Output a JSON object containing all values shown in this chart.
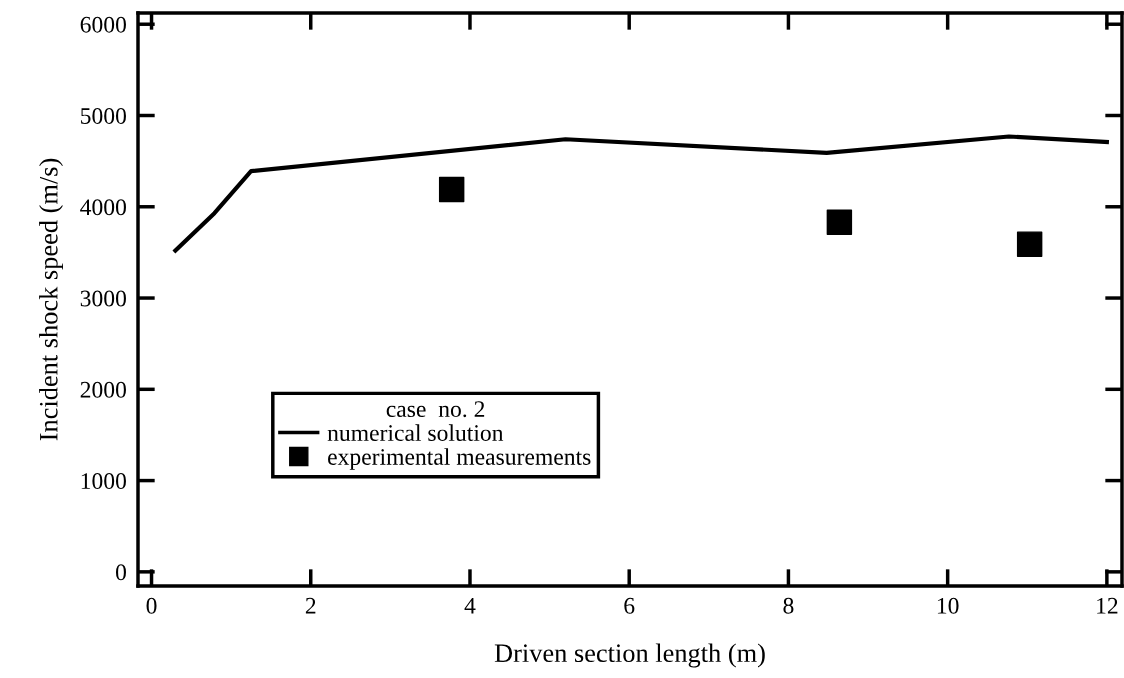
{
  "chart_data": {
    "type": "line",
    "xlabel": "Driven section length (m)",
    "ylabel": "Incident shock speed (m/s)",
    "legend_title": "case  no. 2",
    "xlim": [
      -0.17,
      12.19
    ],
    "ylim": [
      -155,
      6123
    ],
    "xticks": [
      0,
      2,
      4,
      6,
      8,
      10,
      12
    ],
    "yticks": [
      0,
      1000,
      2000,
      3000,
      4000,
      5000,
      6000
    ],
    "series": [
      {
        "name": "numerical solution",
        "color": "#000000",
        "x": [
          0.3,
          0.79,
          1.25,
          5.2,
          8.48,
          10.77,
          12.0
        ],
        "values": [
          3520,
          3930,
          4390,
          4740,
          4590,
          4770,
          4710
        ]
      },
      {
        "name": "experimental measurements",
        "type": "scatter",
        "color": "#000000",
        "marker": "square",
        "x": [
          3.77,
          8.64,
          11.03
        ],
        "values": [
          4190,
          3830,
          3590
        ]
      }
    ],
    "legend": "lower left",
    "grid": false
  }
}
